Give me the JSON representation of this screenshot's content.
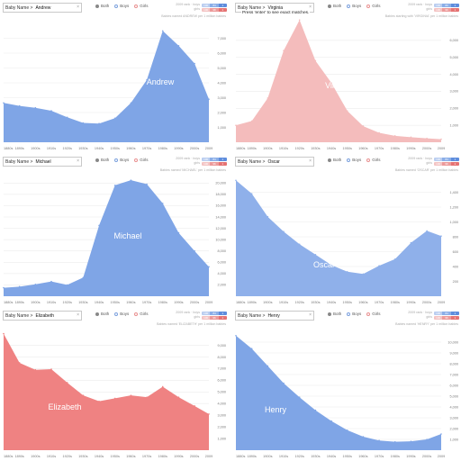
{
  "common": {
    "search_prefix": "Baby Name >",
    "radio_labels": [
      "Both",
      "Boys",
      "Girls"
    ],
    "x_ticks": [
      "1880s",
      "1890s",
      "1900s",
      "1910s",
      "1920s",
      "1930s",
      "1940s",
      "1950s",
      "1960s",
      "1970s",
      "1980s",
      "1990s",
      "2000s",
      "2009"
    ],
    "stats_row1_label": "2009 rank · boys",
    "stats_row2_label": "girls",
    "boys_color": "#7fa5e6",
    "girls_color": "#ef8282",
    "girls_light_color": "#f4bcbc"
  },
  "panels": [
    {
      "id": "andrew",
      "search_value": "Andrew",
      "selected_radio": "Both",
      "hint": "",
      "caption": "Babies named ANDREW per 1 million babies",
      "name_label": "Andrew",
      "stats_boys": [
        "100",
        "84",
        "1"
      ],
      "stats_girls": [
        "100",
        "98",
        "1"
      ],
      "chart_data": {
        "type": "area",
        "x": [
          1880,
          1890,
          1900,
          1910,
          1920,
          1930,
          1940,
          1950,
          1960,
          1970,
          1980,
          1990,
          2000,
          2009
        ],
        "values": [
          2650,
          2450,
          2320,
          2120,
          1680,
          1300,
          1260,
          1620,
          2650,
          4200,
          7500,
          6500,
          5300,
          2900
        ],
        "ylim": [
          0,
          8000
        ],
        "y_ticks": [
          "1,000",
          "2,000",
          "3,000",
          "4,000",
          "5,000",
          "6,000",
          "7,000"
        ],
        "color": "#7fa5e6",
        "name_label": "Andrew"
      }
    },
    {
      "id": "virginia",
      "search_value": "Virginia",
      "selected_radio": "Both",
      "hint": "Press 'enter' to see exact matches.",
      "caption": "Babies starting with 'VIRGINIA' per 1 million babies",
      "name_label": "Virginia",
      "stats_boys": [
        "100",
        "80",
        "1"
      ],
      "stats_girls": [
        "100",
        "96",
        "1"
      ],
      "chart_data": {
        "type": "area",
        "x": [
          1880,
          1890,
          1900,
          1910,
          1920,
          1930,
          1940,
          1950,
          1960,
          1970,
          1980,
          1990,
          2000,
          2009
        ],
        "values": [
          1000,
          1250,
          2600,
          5400,
          7200,
          4800,
          3500,
          1850,
          950,
          560,
          380,
          300,
          230,
          180
        ],
        "ylim": [
          0,
          7000
        ],
        "y_ticks": [
          "1,000",
          "2,000",
          "3,000",
          "4,000",
          "5,000",
          "6,000"
        ],
        "color": "#f4bcbc",
        "name_label": "Virginia"
      }
    },
    {
      "id": "michael",
      "search_value": "Michael",
      "selected_radio": "Both",
      "hint": "",
      "caption": "Babies named 'MICHAEL' per 1 million babies",
      "name_label": "Michael",
      "stats_boys": [
        "100",
        "84",
        "1"
      ],
      "stats_girls": [
        "100",
        "96",
        "1"
      ],
      "chart_data": {
        "type": "area",
        "x": [
          1880,
          1890,
          1900,
          1910,
          1920,
          1930,
          1940,
          1950,
          1960,
          1970,
          1980,
          1990,
          2000,
          2009
        ],
        "values": [
          1500,
          1700,
          2100,
          2600,
          2000,
          3300,
          12500,
          19600,
          20500,
          19800,
          16400,
          11200,
          8000,
          5200
        ],
        "ylim": [
          0,
          21000
        ],
        "y_ticks": [
          "2,000",
          "4,000",
          "6,000",
          "8,000",
          "10,000",
          "12,000",
          "14,000",
          "16,000",
          "18,000",
          "20,000"
        ],
        "color": "#7fa5e6",
        "name_label": "Michael"
      }
    },
    {
      "id": "oscar",
      "search_value": "Oscar",
      "selected_radio": "Both",
      "hint": "",
      "caption": "Babies named 'OSCAR' per 1 million babies",
      "name_label": "Oscar",
      "stats_boys": [
        "100",
        "84",
        "1"
      ],
      "stats_girls": [
        "100",
        "96",
        "1"
      ],
      "chart_data": {
        "type": "area",
        "x": [
          1880,
          1890,
          1900,
          1910,
          1920,
          1930,
          1940,
          1950,
          1960,
          1970,
          1980,
          1990,
          2000,
          2009
        ],
        "values": [
          1560,
          1380,
          1070,
          870,
          700,
          560,
          420,
          330,
          300,
          410,
          500,
          720,
          880,
          810
        ],
        "ylim": [
          0,
          1600
        ],
        "y_ticks": [
          "200",
          "400",
          "600",
          "800",
          "1,000",
          "1,200",
          "1,400"
        ],
        "color": "#8fb0ea",
        "name_label": "Oscar"
      }
    },
    {
      "id": "elizabeth",
      "search_value": "Elizabeth",
      "selected_radio": "Both",
      "hint": "",
      "caption": "Babies named 'ELIZABETH' per 1 million babies",
      "name_label": "Elizabeth",
      "stats_boys": [
        "100",
        "84",
        "1"
      ],
      "stats_girls": [
        "100",
        "96",
        "1"
      ],
      "chart_data": {
        "type": "area",
        "x": [
          1880,
          1890,
          1900,
          1910,
          1920,
          1930,
          1940,
          1950,
          1960,
          1970,
          1980,
          1990,
          2000,
          2009
        ],
        "values": [
          10000,
          7500,
          6900,
          6950,
          5800,
          4700,
          4200,
          4450,
          4700,
          4550,
          5450,
          4550,
          3800,
          3100
        ],
        "ylim": [
          0,
          10200
        ],
        "y_ticks": [
          "1,000",
          "2,000",
          "3,000",
          "4,000",
          "5,000",
          "6,000",
          "7,000",
          "8,000",
          "9,000"
        ],
        "color": "#ef8282",
        "name_label": "Elizabeth"
      }
    },
    {
      "id": "henry",
      "search_value": "Henry",
      "selected_radio": "Both",
      "hint": "",
      "caption": "Babies named 'HENRY' per 1 million babies",
      "name_label": "Henry",
      "stats_boys": [
        "100",
        "84",
        "1"
      ],
      "stats_girls": [
        "100",
        "96",
        "1"
      ],
      "chart_data": {
        "type": "area",
        "x": [
          1880,
          1890,
          1900,
          1910,
          1920,
          1930,
          1940,
          1950,
          1960,
          1970,
          1980,
          1990,
          2000,
          2009
        ],
        "values": [
          10600,
          9400,
          7800,
          6200,
          4900,
          3700,
          2700,
          1850,
          1250,
          900,
          780,
          820,
          1000,
          1500
        ],
        "ylim": [
          0,
          11000
        ],
        "y_ticks": [
          "1,000",
          "2,000",
          "3,000",
          "4,000",
          "5,000",
          "6,000",
          "7,000",
          "8,000",
          "9,000",
          "10,000"
        ],
        "color": "#7fa5e6",
        "name_label": "Henry"
      }
    }
  ]
}
